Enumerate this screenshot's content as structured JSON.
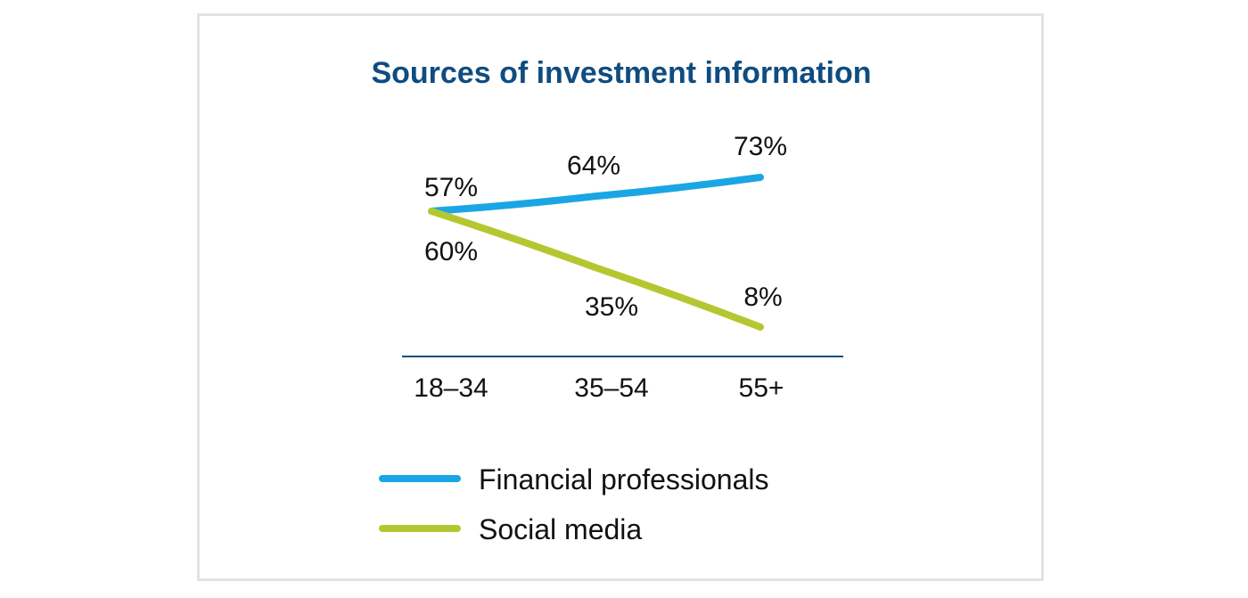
{
  "chart_data": {
    "type": "line",
    "title": "Sources of investment information",
    "categories": [
      "18–34",
      "35–54",
      "55+"
    ],
    "series": [
      {
        "name": "Financial professionals",
        "values": [
          57,
          64,
          73
        ],
        "labels": [
          "57%",
          "64%",
          "73%"
        ],
        "color": "#1aa6e4"
      },
      {
        "name": "Social media",
        "values": [
          60,
          35,
          8
        ],
        "labels": [
          "60%",
          "35%",
          "8%"
        ],
        "color": "#b5c730"
      }
    ],
    "legend_position": "bottom",
    "grid": false,
    "axis_color": "#0f4c81",
    "title_color": "#0f4c81"
  }
}
